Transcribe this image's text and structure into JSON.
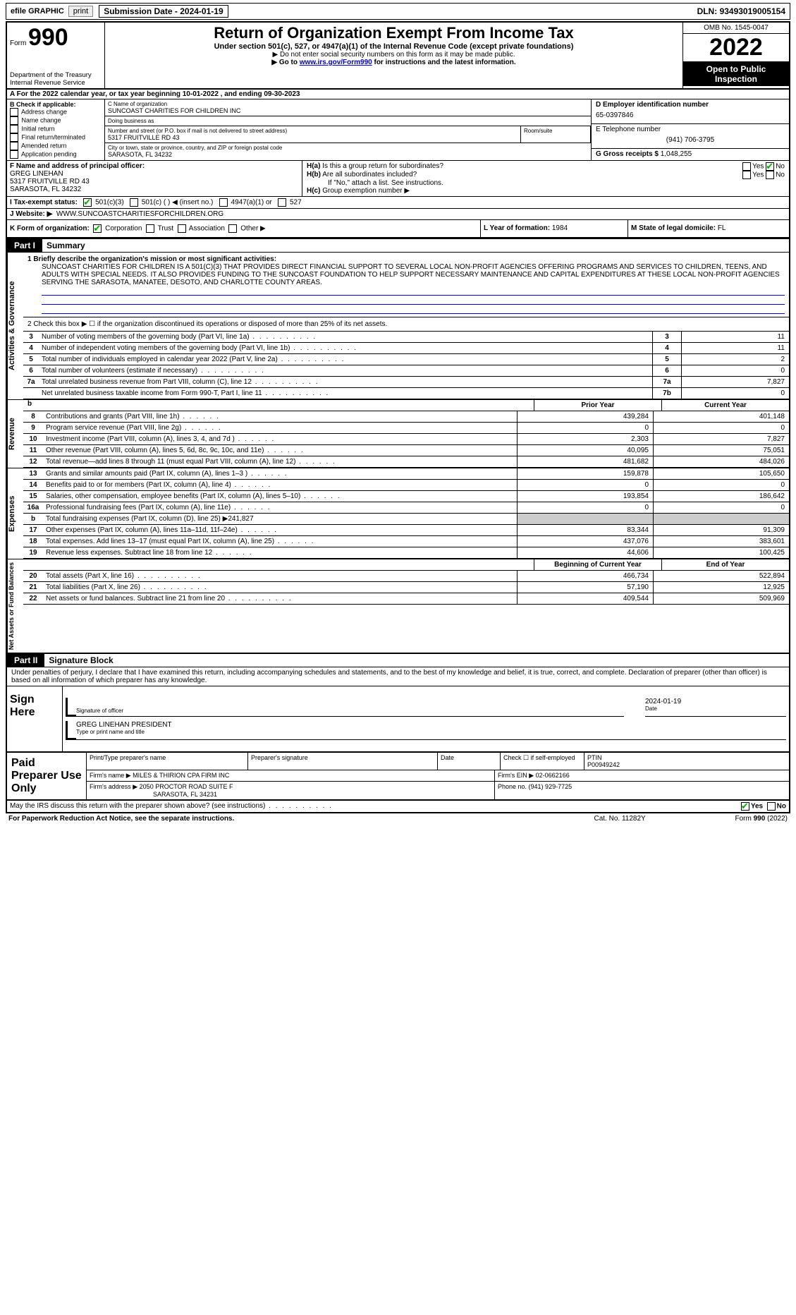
{
  "colors": {
    "background": "#ffffff",
    "text": "#000000",
    "link": "#0000cc",
    "part_header_bg": "#000000",
    "part_header_fg": "#ffffff",
    "shaded_bg": "#cccccc"
  },
  "top": {
    "efile": "efile GRAPHIC",
    "print": "print",
    "submission_date_label": "Submission Date - ",
    "submission_date": "2024-01-19",
    "dln_label": "DLN: ",
    "dln": "93493019005154"
  },
  "header": {
    "form_label": "Form",
    "form_number": "990",
    "dept": "Department of the Treasury\nInternal Revenue Service",
    "title": "Return of Organization Exempt From Income Tax",
    "subtitle": "Under section 501(c), 527, or 4947(a)(1) of the Internal Revenue Code (except private foundations)",
    "note1": "▶ Do not enter social security numbers on this form as it may be made public.",
    "note2_pre": "▶ Go to ",
    "note2_link": "www.irs.gov/Form990",
    "note2_post": " for instructions and the latest information.",
    "omb": "OMB No. 1545-0047",
    "year": "2022",
    "open_public": "Open to Public Inspection"
  },
  "row_a": {
    "pre": "A For the 2022 calendar year, or tax year beginning ",
    "begin": "10-01-2022",
    "mid": " , and ending ",
    "end": "09-30-2023"
  },
  "section_b": {
    "label": "B Check if applicable:",
    "items": [
      "Address change",
      "Name change",
      "Initial return",
      "Final return/terminated",
      "Amended return",
      "Application pending"
    ]
  },
  "section_c": {
    "name_label": "C Name of organization",
    "name": "SUNCOAST CHARITIES FOR CHILDREN INC",
    "dba_label": "Doing business as",
    "dba": "",
    "street_label": "Number and street (or P.O. box if mail is not delivered to street address)",
    "street": "5317 FRUITVILLE RD 43",
    "suite_label": "Room/suite",
    "city_label": "City or town, state or province, country, and ZIP or foreign postal code",
    "city": "SARASOTA, FL  34232"
  },
  "section_d": {
    "ein_label": "D Employer identification number",
    "ein": "65-0397846",
    "phone_label": "E Telephone number",
    "phone": "(941) 706-3795",
    "gross_label": "G Gross receipts $ ",
    "gross": "1,048,255"
  },
  "section_f": {
    "label": "F Name and address of principal officer:",
    "name": "GREG LINEHAN",
    "addr1": "5317 FRUITVILLE RD 43",
    "addr2": "SARASOTA, FL  34232"
  },
  "section_h": {
    "ha_label": "H(a)  Is this a group return for subordinates?",
    "hb_label": "H(b)  Are all subordinates included?",
    "hb_note": "If \"No,\" attach a list. See instructions.",
    "hc_label": "H(c)  Group exemption number ▶",
    "yes": "Yes",
    "no": "No"
  },
  "row_i": {
    "label": "I  Tax-exempt status:",
    "opt1": "501(c)(3)",
    "opt2": "501(c) (   ) ◀ (insert no.)",
    "opt3": "4947(a)(1) or",
    "opt4": "527"
  },
  "row_j": {
    "label": "J  Website: ▶",
    "value": "WWW.SUNCOASTCHARITIESFORCHILDREN.ORG"
  },
  "row_k": {
    "label": "K Form of organization:",
    "opts": [
      "Corporation",
      "Trust",
      "Association",
      "Other ▶"
    ],
    "l_label": "L Year of formation: ",
    "l_value": "1984",
    "m_label": "M State of legal domicile: ",
    "m_value": "FL"
  },
  "part1": {
    "tab": "Part I",
    "title": "Summary",
    "side_activities": "Activities & Governance",
    "side_revenue": "Revenue",
    "side_expenses": "Expenses",
    "side_net": "Net Assets or Fund Balances",
    "line1_label": "1  Briefly describe the organization's mission or most significant activities:",
    "mission": "SUNCOAST CHARITIES FOR CHILDREN IS A 501(C)(3) THAT PROVIDES DIRECT FINANCIAL SUPPORT TO SEVERAL LOCAL NON-PROFIT AGENCIES OFFERING PROGRAMS AND SERVICES TO CHILDREN, TEENS, AND ADULTS WITH SPECIAL NEEDS. IT ALSO PROVIDES FUNDING TO THE SUNCOAST FOUNDATION TO HELP SUPPORT NECESSARY MAINTENANCE AND CAPITAL EXPENDITURES AT THESE LOCAL NON-PROFIT AGENCIES SERVING THE SARASOTA, MANATEE, DESOTO, AND CHARLOTTE COUNTY AREAS.",
    "line2": "2  Check this box ▶ ☐ if the organization discontinued its operations or disposed of more than 25% of its net assets.",
    "rows_gov": [
      {
        "num": "3",
        "desc": "Number of voting members of the governing body (Part VI, line 1a)",
        "code": "3",
        "val": "11"
      },
      {
        "num": "4",
        "desc": "Number of independent voting members of the governing body (Part VI, line 1b)",
        "code": "4",
        "val": "11"
      },
      {
        "num": "5",
        "desc": "Total number of individuals employed in calendar year 2022 (Part V, line 2a)",
        "code": "5",
        "val": "2"
      },
      {
        "num": "6",
        "desc": "Total number of volunteers (estimate if necessary)",
        "code": "6",
        "val": "0"
      },
      {
        "num": "7a",
        "desc": "Total unrelated business revenue from Part VIII, column (C), line 12",
        "code": "7a",
        "val": "7,827"
      },
      {
        "num": "",
        "desc": "Net unrelated business taxable income from Form 990-T, Part I, line 11",
        "code": "7b",
        "val": "0"
      }
    ],
    "col_prior": "Prior Year",
    "col_current": "Current Year",
    "col_begin": "Beginning of Current Year",
    "col_end": "End of Year",
    "rows_rev": [
      {
        "num": "8",
        "desc": "Contributions and grants (Part VIII, line 1h)",
        "prior": "439,284",
        "curr": "401,148"
      },
      {
        "num": "9",
        "desc": "Program service revenue (Part VIII, line 2g)",
        "prior": "0",
        "curr": "0"
      },
      {
        "num": "10",
        "desc": "Investment income (Part VIII, column (A), lines 3, 4, and 7d )",
        "prior": "2,303",
        "curr": "7,827"
      },
      {
        "num": "11",
        "desc": "Other revenue (Part VIII, column (A), lines 5, 6d, 8c, 9c, 10c, and 11e)",
        "prior": "40,095",
        "curr": "75,051"
      },
      {
        "num": "12",
        "desc": "Total revenue—add lines 8 through 11 (must equal Part VIII, column (A), line 12)",
        "prior": "481,682",
        "curr": "484,026"
      }
    ],
    "rows_exp": [
      {
        "num": "13",
        "desc": "Grants and similar amounts paid (Part IX, column (A), lines 1–3 )",
        "prior": "159,878",
        "curr": "105,650"
      },
      {
        "num": "14",
        "desc": "Benefits paid to or for members (Part IX, column (A), line 4)",
        "prior": "0",
        "curr": "0"
      },
      {
        "num": "15",
        "desc": "Salaries, other compensation, employee benefits (Part IX, column (A), lines 5–10)",
        "prior": "193,854",
        "curr": "186,642"
      },
      {
        "num": "16a",
        "desc": "Professional fundraising fees (Part IX, column (A), line 11e)",
        "prior": "0",
        "curr": "0"
      },
      {
        "num": "b",
        "desc": "Total fundraising expenses (Part IX, column (D), line 25) ▶241,827",
        "prior": "",
        "curr": "",
        "shaded": true
      },
      {
        "num": "17",
        "desc": "Other expenses (Part IX, column (A), lines 11a–11d, 11f–24e)",
        "prior": "83,344",
        "curr": "91,309"
      },
      {
        "num": "18",
        "desc": "Total expenses. Add lines 13–17 (must equal Part IX, column (A), line 25)",
        "prior": "437,076",
        "curr": "383,601"
      },
      {
        "num": "19",
        "desc": "Revenue less expenses. Subtract line 18 from line 12",
        "prior": "44,606",
        "curr": "100,425"
      }
    ],
    "rows_net": [
      {
        "num": "20",
        "desc": "Total assets (Part X, line 16)",
        "prior": "466,734",
        "curr": "522,894"
      },
      {
        "num": "21",
        "desc": "Total liabilities (Part X, line 26)",
        "prior": "57,190",
        "curr": "12,925"
      },
      {
        "num": "22",
        "desc": "Net assets or fund balances. Subtract line 21 from line 20",
        "prior": "409,544",
        "curr": "509,969"
      }
    ]
  },
  "part2": {
    "tab": "Part II",
    "title": "Signature Block",
    "declaration": "Under penalties of perjury, I declare that I have examined this return, including accompanying schedules and statements, and to the best of my knowledge and belief, it is true, correct, and complete. Declaration of preparer (other than officer) is based on all information of which preparer has any knowledge.",
    "sign_here": "Sign Here",
    "sig_officer_label": "Signature of officer",
    "date_label": "Date",
    "sig_date": "2024-01-19",
    "officer_name": "GREG LINEHAN  PRESIDENT",
    "name_title_label": "Type or print name and title"
  },
  "preparer": {
    "label": "Paid Preparer Use Only",
    "h_name": "Print/Type preparer's name",
    "h_sig": "Preparer's signature",
    "h_date": "Date",
    "h_check": "Check ☐ if self-employed",
    "h_ptin": "PTIN",
    "ptin": "P00949242",
    "firm_name_label": "Firm's name    ▶",
    "firm_name": "MILES & THIRION CPA FIRM INC",
    "firm_ein_label": "Firm's EIN ▶",
    "firm_ein": "02-0662166",
    "firm_addr_label": "Firm's address ▶",
    "firm_addr1": "2050 PROCTOR ROAD SUITE F",
    "firm_addr2": "SARASOTA, FL  34231",
    "phone_label": "Phone no. ",
    "phone": "(941) 929-7725"
  },
  "footer": {
    "discuss": "May the IRS discuss this return with the preparer shown above? (see instructions)",
    "yes": "Yes",
    "no": "No",
    "paperwork": "For Paperwork Reduction Act Notice, see the separate instructions.",
    "cat": "Cat. No. 11282Y",
    "form": "Form 990 (2022)"
  }
}
